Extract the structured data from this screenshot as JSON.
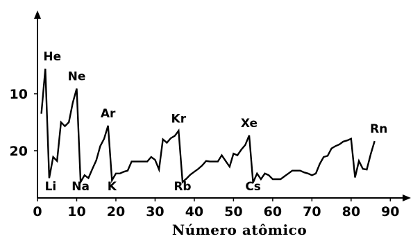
{
  "chart_data": {
    "type": "line",
    "xlabel": "Número atômico",
    "ylabel": "",
    "xlim": [
      0,
      95
    ],
    "ylim": [
      -1,
      28.5
    ],
    "y_reversed": true,
    "x_ticks": [
      0,
      10,
      20,
      30,
      40,
      50,
      60,
      70,
      80,
      90
    ],
    "y_ticks": [
      10,
      20
    ],
    "grid": false,
    "series": [
      {
        "x": [
          1,
          2,
          3,
          4,
          5,
          6,
          7,
          8,
          9,
          10,
          11,
          12,
          13,
          14,
          15,
          16,
          17,
          18,
          19,
          20,
          21,
          22,
          23,
          24,
          25,
          26,
          27,
          28,
          29,
          30,
          31,
          32,
          33,
          34,
          35,
          36,
          37,
          38,
          39,
          40,
          41,
          42,
          43,
          44,
          45,
          46,
          47,
          48,
          49,
          50,
          51,
          52,
          53,
          54,
          55,
          56,
          57,
          58,
          59,
          60,
          61,
          62,
          63,
          64,
          65,
          66,
          67,
          68,
          69,
          70,
          71,
          72,
          73,
          74,
          75,
          76,
          77,
          78,
          79,
          80,
          81,
          82,
          83,
          84,
          85,
          86
        ],
        "y": [
          13.5,
          5.6,
          24.8,
          21.1,
          21.8,
          15.0,
          15.7,
          15.0,
          11.6,
          9.1,
          25.5,
          24.3,
          24.8,
          23.2,
          21.7,
          19.2,
          17.9,
          15.6,
          25.2,
          24.0,
          24.0,
          23.7,
          23.5,
          21.9,
          21.9,
          21.9,
          21.9,
          21.9,
          21.1,
          21.6,
          23.3,
          18.0,
          18.6,
          17.8,
          17.4,
          16.5,
          25.5,
          24.9,
          24.2,
          23.7,
          23.2,
          22.6,
          21.8,
          21.9,
          21.9,
          21.9,
          20.8,
          21.8,
          22.8,
          20.5,
          20.8,
          19.8,
          19.0,
          17.3,
          25.6,
          24.0,
          25.0,
          24.0,
          24.3,
          25.0,
          25.0,
          25.0,
          24.5,
          24.0,
          23.5,
          23.5,
          23.5,
          23.8,
          24.0,
          24.3,
          24.0,
          22.3,
          21.1,
          20.9,
          19.6,
          19.2,
          18.9,
          18.4,
          18.2,
          17.9,
          24.7,
          21.8,
          23.2,
          23.3,
          20.6,
          18.3
        ]
      }
    ],
    "annotations": [
      {
        "text": "He",
        "x": 2,
        "y": 5.6
      },
      {
        "text": "Ne",
        "x": 10,
        "y": 9.1
      },
      {
        "text": "Ar",
        "x": 18,
        "y": 15.6
      },
      {
        "text": "Kr",
        "x": 36,
        "y": 16.5
      },
      {
        "text": "Xe",
        "x": 54,
        "y": 17.3
      },
      {
        "text": "Rn",
        "x": 86,
        "y": 18.3
      },
      {
        "text": "Li",
        "x": 3,
        "y": 24.8
      },
      {
        "text": "Na",
        "x": 11,
        "y": 25.5
      },
      {
        "text": "K",
        "x": 19,
        "y": 25.2
      },
      {
        "text": "Rb",
        "x": 37,
        "y": 25.5
      },
      {
        "text": "Cs",
        "x": 55,
        "y": 25.6
      }
    ]
  }
}
